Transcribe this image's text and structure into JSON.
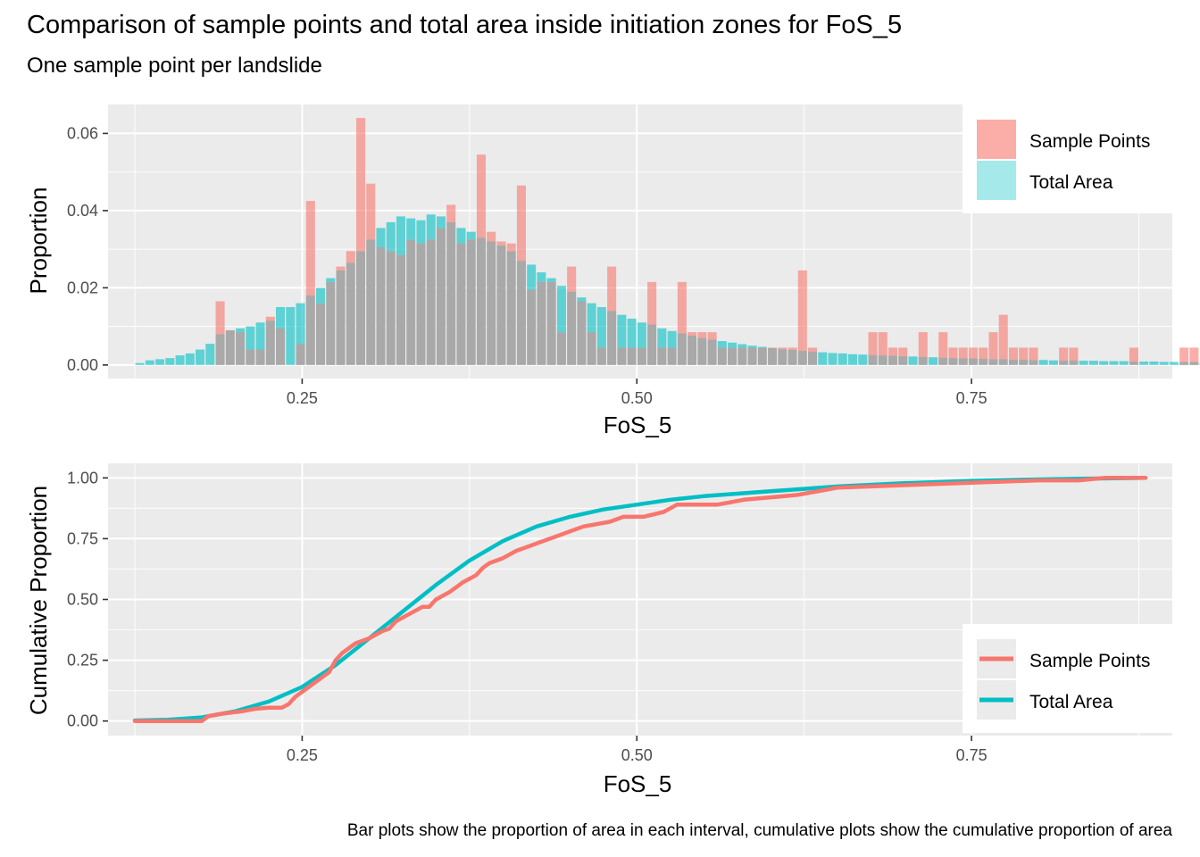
{
  "title": "Comparison of sample points and total area inside initiation zones for FoS_5",
  "subtitle": "One sample point per landslide",
  "caption": "Bar plots show the proportion of area in each interval, cumulative plots show the cumulative proportion of area",
  "colors": {
    "sample_points": "#F8766D",
    "total_area": "#00BFC4",
    "panel_bg": "#EBEBEB",
    "grid": "#FFFFFF",
    "overlap": "#A9A9A9"
  },
  "chart_data": [
    {
      "type": "bar",
      "xlabel": "FoS_5",
      "ylabel": "Proportion",
      "xlim": [
        0.105,
        0.9
      ],
      "ylim": [
        -0.0035,
        0.0675
      ],
      "x_ticks": [
        0.25,
        0.5,
        0.75
      ],
      "x_tick_labels": [
        "0.25",
        "0.50",
        "0.75"
      ],
      "y_ticks": [
        0,
        0.02,
        0.04,
        0.06
      ],
      "y_tick_labels": [
        "0.00",
        "0.02",
        "0.04",
        "0.06"
      ],
      "bin_start": 0.125,
      "bin_width": 0.0075,
      "legend": {
        "position": "right-top",
        "entries": [
          "Sample Points",
          "Total Area"
        ]
      },
      "series": [
        {
          "name": "Sample Points",
          "values": [
            0,
            0,
            0,
            0,
            0,
            0,
            0,
            0,
            0.0165,
            0.009,
            0.0085,
            0.004,
            0.004,
            0.0125,
            0.0095,
            0,
            0.0055,
            0.0425,
            0.016,
            0.0215,
            0.0255,
            0.0295,
            0.064,
            0.047,
            0.0305,
            0.0295,
            0.0285,
            0.0325,
            0.0315,
            0.0325,
            0.0355,
            0.0415,
            0.0315,
            0.0325,
            0.0545,
            0.0345,
            0.032,
            0.0315,
            0.0465,
            0.0195,
            0.0215,
            0.0215,
            0.0085,
            0.0255,
            0.0165,
            0.0085,
            0.0045,
            0.0255,
            0.0045,
            0.0045,
            0.0045,
            0.0215,
            0.0045,
            0.0045,
            0.0215,
            0.0085,
            0.0085,
            0.0085,
            0.0045,
            0.0045,
            0.0045,
            0.0045,
            0.0045,
            0.0045,
            0.0045,
            0.0045,
            0.0245,
            0.0045,
            0,
            0,
            0,
            0,
            0,
            0.0085,
            0.0085,
            0.0045,
            0.0045,
            0,
            0.0085,
            0,
            0.0085,
            0.0045,
            0.0045,
            0.0045,
            0.0045,
            0.0085,
            0.013,
            0.0045,
            0.0045,
            0.0045,
            0,
            0,
            0.0045,
            0.0045,
            0,
            0,
            0,
            0,
            0,
            0.0045,
            0,
            0,
            0,
            0,
            0.0045,
            0.0045,
            0,
            0,
            0,
            0,
            0,
            0,
            0,
            0,
            0,
            0.0045,
            0,
            0,
            0,
            0,
            0,
            0,
            0,
            0.0045,
            0,
            0,
            0,
            0,
            0,
            0,
            0,
            0,
            0,
            0,
            0,
            0,
            0,
            0,
            0,
            0,
            0,
            0,
            0,
            0,
            0,
            0
          ]
        },
        {
          "name": "Total Area",
          "values": [
            0.0005,
            0.0012,
            0.0015,
            0.0018,
            0.0025,
            0.003,
            0.004,
            0.0055,
            0.008,
            0.009,
            0.0095,
            0.01,
            0.011,
            0.0115,
            0.015,
            0.015,
            0.016,
            0.018,
            0.02,
            0.0225,
            0.0245,
            0.0265,
            0.0295,
            0.0325,
            0.0355,
            0.037,
            0.0385,
            0.038,
            0.0375,
            0.039,
            0.0385,
            0.037,
            0.0355,
            0.0345,
            0.033,
            0.032,
            0.031,
            0.0295,
            0.027,
            0.026,
            0.024,
            0.0225,
            0.0205,
            0.019,
            0.0175,
            0.016,
            0.015,
            0.014,
            0.013,
            0.012,
            0.011,
            0.0105,
            0.0095,
            0.0088,
            0.0082,
            0.0076,
            0.007,
            0.0066,
            0.0062,
            0.0058,
            0.0054,
            0.005,
            0.0047,
            0.0044,
            0.0041,
            0.0039,
            0.0037,
            0.0035,
            0.0033,
            0.0031,
            0.003,
            0.0028,
            0.0027,
            0.0026,
            0.0025,
            0.0024,
            0.0023,
            0.0022,
            0.0021,
            0.002,
            0.0019,
            0.0018,
            0.0017,
            0.0017,
            0.0016,
            0.0015,
            0.0015,
            0.0014,
            0.0014,
            0.0013,
            0.0013,
            0.0012,
            0.0012,
            0.0012,
            0.0011,
            0.0011,
            0.001,
            0.001,
            0.001,
            0.0009,
            0.0009,
            0.0009,
            0.0008,
            0.0008,
            0.0008,
            0.0008,
            0.0007,
            0.0007,
            0.0007,
            0.0007,
            0.0007,
            0.0006,
            0.0006,
            0.0006,
            0.0006,
            0.0006,
            0.0006,
            0.0005,
            0.0005,
            0.0005,
            0.0005,
            0.0005,
            0.0005,
            0.0005,
            0.0005,
            0.0005,
            0.0005,
            0.0005,
            0.0005,
            0.0005,
            0.0005,
            0.0005,
            0.0005,
            0.0005,
            0.0005,
            0.0005,
            0.0005,
            0.0005,
            0.0005,
            0.0005,
            0.0005,
            0.0005,
            0.0005,
            0.0005,
            0.0005,
            0.0005,
            0.0005,
            0.0005,
            0.0005,
            0.0005,
            0.0005,
            0.0005,
            0.0005,
            0.0005,
            0.0005,
            0.0005,
            0.0005,
            0.0005,
            0.0005,
            0.0005,
            0.0005,
            0.0005,
            0.0005
          ]
        }
      ]
    },
    {
      "type": "line",
      "xlabel": "FoS_5",
      "ylabel": "Cumulative Proportion",
      "xlim": [
        0.105,
        0.9
      ],
      "ylim": [
        -0.06,
        1.06
      ],
      "x_ticks": [
        0.25,
        0.5,
        0.75
      ],
      "x_tick_labels": [
        "0.25",
        "0.50",
        "0.75"
      ],
      "y_ticks": [
        0,
        0.25,
        0.5,
        0.75,
        1
      ],
      "y_tick_labels": [
        "0.00",
        "0.25",
        "0.50",
        "0.75",
        "1.00"
      ],
      "legend": {
        "position": "right-bottom",
        "entries": [
          "Sample Points",
          "Total Area"
        ]
      },
      "series": [
        {
          "name": "Sample Points",
          "x": [
            0.125,
            0.17,
            0.175,
            0.18,
            0.19,
            0.205,
            0.215,
            0.225,
            0.235,
            0.24,
            0.245,
            0.25,
            0.255,
            0.26,
            0.265,
            0.27,
            0.275,
            0.28,
            0.285,
            0.29,
            0.3,
            0.31,
            0.315,
            0.32,
            0.33,
            0.34,
            0.345,
            0.35,
            0.36,
            0.365,
            0.37,
            0.38,
            0.385,
            0.39,
            0.4,
            0.41,
            0.42,
            0.43,
            0.44,
            0.45,
            0.46,
            0.47,
            0.48,
            0.49,
            0.5,
            0.505,
            0.52,
            0.53,
            0.54,
            0.55,
            0.56,
            0.57,
            0.58,
            0.6,
            0.62,
            0.64,
            0.65,
            0.7,
            0.75,
            0.8,
            0.83,
            0.85,
            0.88
          ],
          "y": [
            0,
            0,
            0,
            0.02,
            0.03,
            0.04,
            0.05,
            0.055,
            0.055,
            0.07,
            0.1,
            0.12,
            0.14,
            0.16,
            0.18,
            0.2,
            0.25,
            0.28,
            0.3,
            0.32,
            0.34,
            0.37,
            0.38,
            0.41,
            0.44,
            0.47,
            0.47,
            0.5,
            0.53,
            0.55,
            0.57,
            0.6,
            0.63,
            0.65,
            0.67,
            0.7,
            0.72,
            0.74,
            0.76,
            0.78,
            0.8,
            0.81,
            0.82,
            0.84,
            0.84,
            0.84,
            0.86,
            0.89,
            0.89,
            0.89,
            0.89,
            0.9,
            0.91,
            0.92,
            0.93,
            0.95,
            0.96,
            0.97,
            0.98,
            0.99,
            0.99,
            1,
            1
          ]
        },
        {
          "name": "Total Area",
          "x": [
            0.125,
            0.15,
            0.175,
            0.2,
            0.225,
            0.25,
            0.275,
            0.3,
            0.325,
            0.35,
            0.375,
            0.4,
            0.425,
            0.45,
            0.475,
            0.5,
            0.525,
            0.55,
            0.575,
            0.6,
            0.625,
            0.65,
            0.7,
            0.75,
            0.8,
            0.85,
            0.88
          ],
          "y": [
            0.002,
            0.005,
            0.015,
            0.04,
            0.08,
            0.14,
            0.23,
            0.34,
            0.45,
            0.56,
            0.66,
            0.74,
            0.8,
            0.84,
            0.87,
            0.89,
            0.91,
            0.925,
            0.935,
            0.945,
            0.955,
            0.965,
            0.978,
            0.988,
            0.994,
            0.998,
            1
          ]
        }
      ]
    }
  ]
}
